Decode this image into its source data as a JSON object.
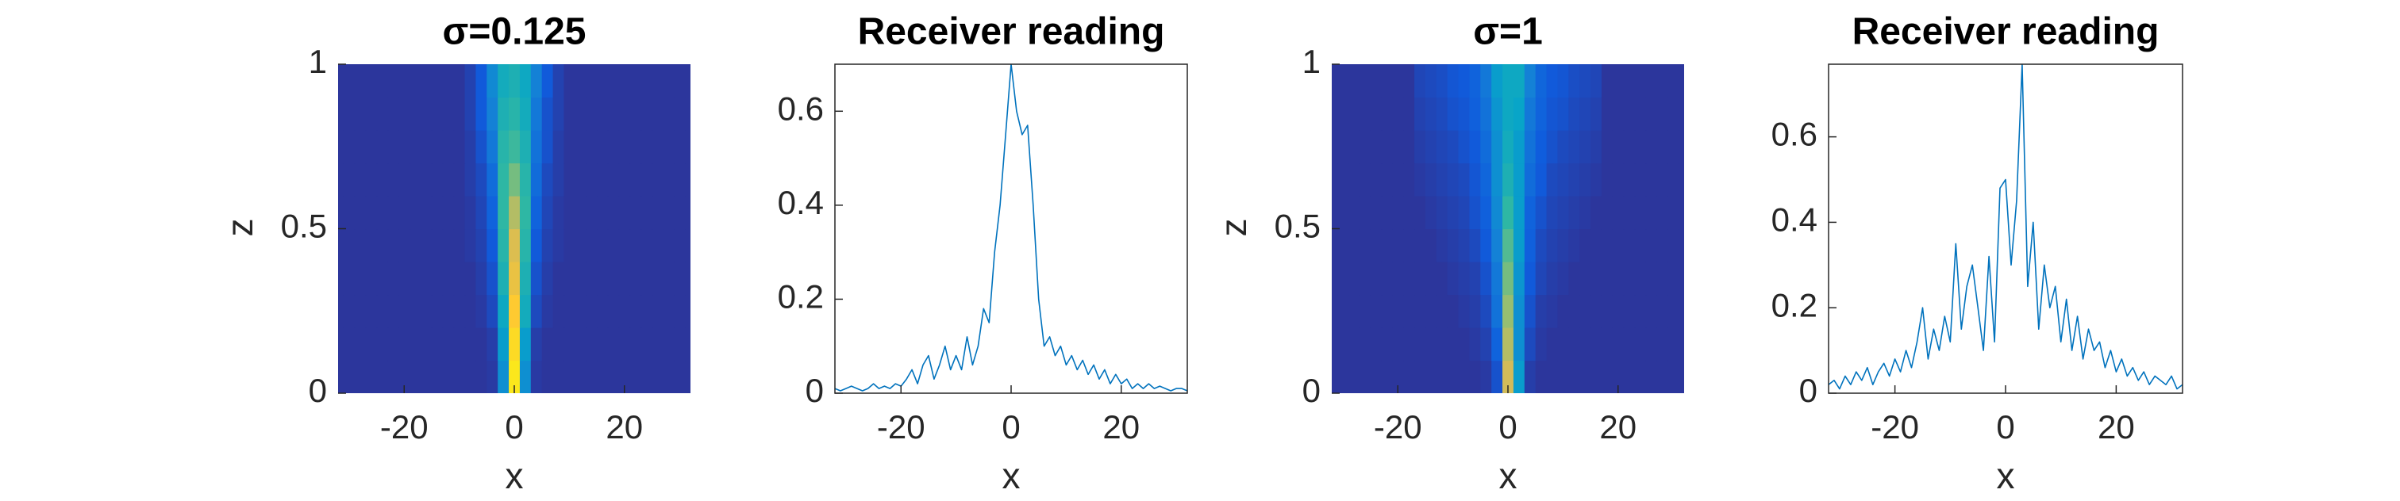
{
  "chart_data": [
    {
      "type": "heatmap",
      "title": "σ=0.125",
      "xlabel": "x",
      "ylabel": "z",
      "xlim": [
        -32,
        32
      ],
      "ylim": [
        0,
        1
      ],
      "xticks": [
        -20,
        0,
        20
      ],
      "yticks": [
        0,
        0.5,
        1
      ],
      "clim": [
        0,
        1
      ],
      "colormap": [
        "#352a87",
        "#0f5cdd",
        "#1481d6",
        "#06a4ca",
        "#2eb7a4",
        "#87bf77",
        "#d1bb59",
        "#fec832",
        "#f9fb0e"
      ],
      "x": [
        -32,
        -30,
        -28,
        -26,
        -24,
        -22,
        -20,
        -18,
        -16,
        -14,
        -12,
        -10,
        -8,
        -6,
        -4,
        -2,
        0,
        2,
        4,
        6,
        8,
        10,
        12,
        14,
        16,
        18,
        20,
        22,
        24,
        26,
        28,
        30,
        32
      ],
      "y": [
        0.05,
        0.15,
        0.25,
        0.35,
        0.45,
        0.55,
        0.65,
        0.75,
        0.85,
        0.95
      ],
      "values": [
        [
          0.03,
          0.03,
          0.03,
          0.03,
          0.03,
          0.03,
          0.03,
          0.03,
          0.03,
          0.03,
          0.03,
          0.03,
          0.03,
          0.03,
          0.04,
          0.3,
          0.95,
          0.3,
          0.04,
          0.03,
          0.03,
          0.03,
          0.03,
          0.03,
          0.03,
          0.03,
          0.03,
          0.03,
          0.03,
          0.03,
          0.03,
          0.03,
          0.03
        ],
        [
          0.03,
          0.03,
          0.03,
          0.03,
          0.03,
          0.03,
          0.03,
          0.03,
          0.03,
          0.03,
          0.03,
          0.03,
          0.03,
          0.03,
          0.05,
          0.35,
          0.92,
          0.35,
          0.05,
          0.03,
          0.03,
          0.03,
          0.03,
          0.03,
          0.03,
          0.03,
          0.03,
          0.03,
          0.03,
          0.03,
          0.03,
          0.03,
          0.03
        ],
        [
          0.03,
          0.03,
          0.03,
          0.03,
          0.03,
          0.03,
          0.03,
          0.03,
          0.03,
          0.03,
          0.03,
          0.03,
          0.03,
          0.04,
          0.08,
          0.4,
          0.88,
          0.42,
          0.08,
          0.04,
          0.03,
          0.03,
          0.03,
          0.03,
          0.03,
          0.03,
          0.03,
          0.03,
          0.03,
          0.03,
          0.03,
          0.03,
          0.03
        ],
        [
          0.03,
          0.03,
          0.03,
          0.03,
          0.03,
          0.03,
          0.03,
          0.03,
          0.03,
          0.03,
          0.03,
          0.03,
          0.03,
          0.05,
          0.1,
          0.45,
          0.82,
          0.45,
          0.1,
          0.05,
          0.03,
          0.03,
          0.03,
          0.03,
          0.03,
          0.03,
          0.03,
          0.03,
          0.03,
          0.03,
          0.03,
          0.03,
          0.03
        ],
        [
          0.03,
          0.03,
          0.03,
          0.03,
          0.03,
          0.03,
          0.03,
          0.03,
          0.03,
          0.03,
          0.03,
          0.03,
          0.04,
          0.06,
          0.12,
          0.48,
          0.78,
          0.48,
          0.12,
          0.06,
          0.04,
          0.03,
          0.03,
          0.03,
          0.03,
          0.03,
          0.03,
          0.03,
          0.03,
          0.03,
          0.03,
          0.03,
          0.03
        ],
        [
          0.03,
          0.03,
          0.03,
          0.03,
          0.03,
          0.03,
          0.03,
          0.03,
          0.03,
          0.03,
          0.03,
          0.03,
          0.04,
          0.07,
          0.15,
          0.5,
          0.7,
          0.5,
          0.15,
          0.07,
          0.04,
          0.03,
          0.03,
          0.03,
          0.03,
          0.03,
          0.03,
          0.03,
          0.03,
          0.03,
          0.03,
          0.03,
          0.03
        ],
        [
          0.03,
          0.03,
          0.03,
          0.03,
          0.03,
          0.03,
          0.03,
          0.03,
          0.03,
          0.03,
          0.03,
          0.03,
          0.05,
          0.08,
          0.18,
          0.5,
          0.6,
          0.48,
          0.18,
          0.08,
          0.05,
          0.03,
          0.03,
          0.03,
          0.03,
          0.03,
          0.03,
          0.03,
          0.03,
          0.03,
          0.03,
          0.03,
          0.03
        ],
        [
          0.03,
          0.03,
          0.03,
          0.03,
          0.03,
          0.03,
          0.03,
          0.03,
          0.03,
          0.03,
          0.03,
          0.03,
          0.05,
          0.1,
          0.22,
          0.48,
          0.52,
          0.45,
          0.2,
          0.1,
          0.05,
          0.03,
          0.03,
          0.03,
          0.03,
          0.03,
          0.03,
          0.03,
          0.03,
          0.03,
          0.03,
          0.03,
          0.03
        ],
        [
          0.03,
          0.03,
          0.03,
          0.03,
          0.03,
          0.03,
          0.03,
          0.03,
          0.03,
          0.03,
          0.03,
          0.03,
          0.06,
          0.12,
          0.25,
          0.45,
          0.48,
          0.42,
          0.22,
          0.1,
          0.06,
          0.03,
          0.03,
          0.03,
          0.03,
          0.03,
          0.03,
          0.03,
          0.03,
          0.03,
          0.03,
          0.03,
          0.03
        ],
        [
          0.03,
          0.03,
          0.03,
          0.03,
          0.03,
          0.03,
          0.03,
          0.03,
          0.03,
          0.03,
          0.03,
          0.03,
          0.06,
          0.12,
          0.28,
          0.42,
          0.45,
          0.4,
          0.25,
          0.12,
          0.06,
          0.03,
          0.03,
          0.03,
          0.03,
          0.03,
          0.03,
          0.03,
          0.03,
          0.03,
          0.03,
          0.03,
          0.03
        ]
      ]
    },
    {
      "type": "line",
      "title": "Receiver reading",
      "xlabel": "x",
      "xlim": [
        -32,
        32
      ],
      "ylim": [
        0,
        0.7
      ],
      "xticks": [
        -20,
        0,
        20
      ],
      "yticks": [
        0,
        0.2,
        0.4,
        0.6
      ],
      "color": "#0072bd",
      "x": [
        -32,
        -31,
        -30,
        -29,
        -28,
        -27,
        -26,
        -25,
        -24,
        -23,
        -22,
        -21,
        -20,
        -19,
        -18,
        -17,
        -16,
        -15,
        -14,
        -13,
        -12,
        -11,
        -10,
        -9,
        -8,
        -7,
        -6,
        -5,
        -4,
        -3,
        -2,
        -1,
        0,
        1,
        2,
        3,
        4,
        5,
        6,
        7,
        8,
        9,
        10,
        11,
        12,
        13,
        14,
        15,
        16,
        17,
        18,
        19,
        20,
        21,
        22,
        23,
        24,
        25,
        26,
        27,
        28,
        29,
        30,
        31,
        32
      ],
      "values": [
        0.01,
        0.005,
        0.01,
        0.015,
        0.01,
        0.005,
        0.01,
        0.02,
        0.01,
        0.015,
        0.01,
        0.02,
        0.015,
        0.03,
        0.05,
        0.02,
        0.06,
        0.08,
        0.03,
        0.06,
        0.1,
        0.05,
        0.08,
        0.05,
        0.12,
        0.06,
        0.1,
        0.18,
        0.15,
        0.3,
        0.4,
        0.55,
        0.7,
        0.6,
        0.55,
        0.57,
        0.4,
        0.2,
        0.1,
        0.12,
        0.08,
        0.1,
        0.06,
        0.08,
        0.05,
        0.07,
        0.04,
        0.06,
        0.03,
        0.05,
        0.02,
        0.04,
        0.02,
        0.03,
        0.01,
        0.02,
        0.01,
        0.02,
        0.01,
        0.015,
        0.01,
        0.005,
        0.01,
        0.01,
        0.005
      ]
    },
    {
      "type": "heatmap",
      "title": "σ=1",
      "xlabel": "x",
      "ylabel": "z",
      "xlim": [
        -32,
        32
      ],
      "ylim": [
        0,
        1
      ],
      "xticks": [
        -20,
        0,
        20
      ],
      "yticks": [
        0,
        0.5,
        1
      ],
      "clim": [
        0,
        1
      ],
      "colormap": [
        "#352a87",
        "#0f5cdd",
        "#1481d6",
        "#06a4ca",
        "#2eb7a4",
        "#87bf77",
        "#d1bb59",
        "#fec832",
        "#f9fb0e"
      ],
      "x": [
        -32,
        -30,
        -28,
        -26,
        -24,
        -22,
        -20,
        -18,
        -16,
        -14,
        -12,
        -10,
        -8,
        -6,
        -4,
        -2,
        0,
        2,
        4,
        6,
        8,
        10,
        12,
        14,
        16,
        18,
        20,
        22,
        24,
        26,
        28,
        30,
        32
      ],
      "y": [
        0.05,
        0.15,
        0.25,
        0.35,
        0.45,
        0.55,
        0.65,
        0.75,
        0.85,
        0.95
      ],
      "values": [
        [
          0.03,
          0.03,
          0.03,
          0.03,
          0.03,
          0.03,
          0.03,
          0.03,
          0.03,
          0.03,
          0.03,
          0.03,
          0.03,
          0.03,
          0.04,
          0.1,
          0.75,
          0.35,
          0.05,
          0.03,
          0.03,
          0.03,
          0.03,
          0.03,
          0.03,
          0.03,
          0.03,
          0.03,
          0.03,
          0.03,
          0.03,
          0.03,
          0.03
        ],
        [
          0.03,
          0.03,
          0.03,
          0.03,
          0.03,
          0.03,
          0.03,
          0.03,
          0.03,
          0.03,
          0.03,
          0.03,
          0.03,
          0.04,
          0.06,
          0.15,
          0.7,
          0.3,
          0.08,
          0.04,
          0.03,
          0.03,
          0.03,
          0.03,
          0.03,
          0.03,
          0.03,
          0.03,
          0.03,
          0.03,
          0.03,
          0.03,
          0.03
        ],
        [
          0.03,
          0.03,
          0.03,
          0.03,
          0.03,
          0.03,
          0.03,
          0.03,
          0.03,
          0.03,
          0.03,
          0.03,
          0.04,
          0.05,
          0.08,
          0.2,
          0.65,
          0.3,
          0.1,
          0.05,
          0.04,
          0.03,
          0.03,
          0.03,
          0.03,
          0.03,
          0.03,
          0.03,
          0.03,
          0.03,
          0.03,
          0.03,
          0.03
        ],
        [
          0.03,
          0.03,
          0.03,
          0.03,
          0.03,
          0.03,
          0.03,
          0.03,
          0.03,
          0.03,
          0.03,
          0.04,
          0.05,
          0.06,
          0.1,
          0.22,
          0.6,
          0.32,
          0.12,
          0.07,
          0.05,
          0.04,
          0.03,
          0.03,
          0.03,
          0.03,
          0.03,
          0.03,
          0.03,
          0.03,
          0.03,
          0.03,
          0.03
        ],
        [
          0.03,
          0.03,
          0.03,
          0.03,
          0.03,
          0.03,
          0.03,
          0.03,
          0.03,
          0.03,
          0.04,
          0.05,
          0.06,
          0.08,
          0.12,
          0.25,
          0.55,
          0.35,
          0.14,
          0.08,
          0.06,
          0.05,
          0.04,
          0.03,
          0.03,
          0.03,
          0.03,
          0.03,
          0.03,
          0.03,
          0.03,
          0.03,
          0.03
        ],
        [
          0.03,
          0.03,
          0.03,
          0.03,
          0.03,
          0.03,
          0.03,
          0.03,
          0.03,
          0.04,
          0.05,
          0.06,
          0.07,
          0.1,
          0.14,
          0.28,
          0.5,
          0.35,
          0.15,
          0.1,
          0.07,
          0.06,
          0.05,
          0.04,
          0.03,
          0.03,
          0.03,
          0.03,
          0.03,
          0.03,
          0.03,
          0.03,
          0.03
        ],
        [
          0.03,
          0.03,
          0.03,
          0.03,
          0.03,
          0.03,
          0.03,
          0.03,
          0.04,
          0.05,
          0.06,
          0.07,
          0.08,
          0.11,
          0.16,
          0.3,
          0.45,
          0.35,
          0.18,
          0.12,
          0.08,
          0.07,
          0.06,
          0.05,
          0.04,
          0.03,
          0.03,
          0.03,
          0.03,
          0.03,
          0.03,
          0.03,
          0.03
        ],
        [
          0.03,
          0.03,
          0.03,
          0.03,
          0.03,
          0.03,
          0.03,
          0.03,
          0.05,
          0.06,
          0.07,
          0.08,
          0.1,
          0.12,
          0.18,
          0.3,
          0.42,
          0.35,
          0.2,
          0.13,
          0.1,
          0.08,
          0.07,
          0.06,
          0.05,
          0.03,
          0.03,
          0.03,
          0.03,
          0.03,
          0.03,
          0.03,
          0.03
        ],
        [
          0.03,
          0.03,
          0.03,
          0.03,
          0.03,
          0.03,
          0.03,
          0.03,
          0.06,
          0.07,
          0.08,
          0.1,
          0.11,
          0.14,
          0.2,
          0.32,
          0.4,
          0.38,
          0.22,
          0.15,
          0.11,
          0.1,
          0.08,
          0.07,
          0.06,
          0.03,
          0.03,
          0.03,
          0.03,
          0.03,
          0.03,
          0.03,
          0.03
        ],
        [
          0.03,
          0.03,
          0.03,
          0.03,
          0.03,
          0.03,
          0.03,
          0.03,
          0.07,
          0.08,
          0.09,
          0.11,
          0.12,
          0.15,
          0.22,
          0.35,
          0.4,
          0.4,
          0.25,
          0.16,
          0.12,
          0.11,
          0.09,
          0.08,
          0.07,
          0.03,
          0.03,
          0.03,
          0.03,
          0.03,
          0.03,
          0.03,
          0.03
        ]
      ]
    },
    {
      "type": "line",
      "title": "Receiver reading",
      "xlabel": "x",
      "xlim": [
        -32,
        32
      ],
      "ylim": [
        0,
        0.77
      ],
      "xticks": [
        -20,
        0,
        20
      ],
      "yticks": [
        0,
        0.2,
        0.4,
        0.6
      ],
      "color": "#0072bd",
      "x": [
        -32,
        -31,
        -30,
        -29,
        -28,
        -27,
        -26,
        -25,
        -24,
        -23,
        -22,
        -21,
        -20,
        -19,
        -18,
        -17,
        -16,
        -15,
        -14,
        -13,
        -12,
        -11,
        -10,
        -9,
        -8,
        -7,
        -6,
        -5,
        -4,
        -3,
        -2,
        -1,
        0,
        1,
        2,
        3,
        4,
        5,
        6,
        7,
        8,
        9,
        10,
        11,
        12,
        13,
        14,
        15,
        16,
        17,
        18,
        19,
        20,
        21,
        22,
        23,
        24,
        25,
        26,
        27,
        28,
        29,
        30,
        31,
        32
      ],
      "values": [
        0.02,
        0.03,
        0.01,
        0.04,
        0.02,
        0.05,
        0.03,
        0.06,
        0.02,
        0.05,
        0.07,
        0.04,
        0.08,
        0.05,
        0.1,
        0.06,
        0.12,
        0.2,
        0.08,
        0.15,
        0.1,
        0.18,
        0.12,
        0.35,
        0.15,
        0.25,
        0.3,
        0.2,
        0.1,
        0.32,
        0.12,
        0.48,
        0.5,
        0.3,
        0.45,
        0.77,
        0.25,
        0.4,
        0.15,
        0.3,
        0.2,
        0.25,
        0.12,
        0.22,
        0.1,
        0.18,
        0.08,
        0.15,
        0.1,
        0.12,
        0.06,
        0.1,
        0.05,
        0.08,
        0.04,
        0.06,
        0.03,
        0.05,
        0.02,
        0.04,
        0.03,
        0.02,
        0.04,
        0.01,
        0.02
      ]
    }
  ]
}
